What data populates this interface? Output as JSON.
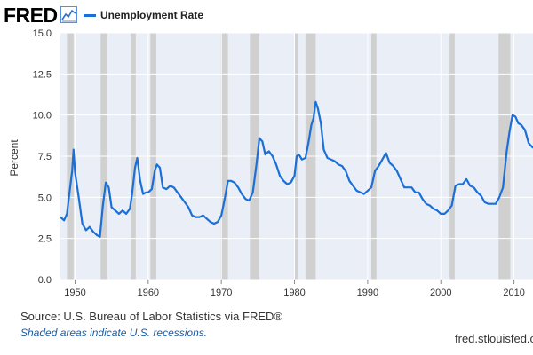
{
  "header": {
    "logo_text": "FRED",
    "logo_icon": "line-chart-icon",
    "legend_label": "Unemployment Rate"
  },
  "colors": {
    "line": "#1a6fd8",
    "recession": "#d0d0d0",
    "plot_background": "#eaeef6",
    "grid": "#ffffff",
    "note": "#1a5ea8"
  },
  "chart_data": {
    "type": "line",
    "title": "",
    "xlabel": "",
    "ylabel": "Percent",
    "xlim": [
      1948,
      2012.6
    ],
    "ylim": [
      0,
      15
    ],
    "y_ticks": [
      "0.0",
      "2.5",
      "5.0",
      "7.5",
      "10.0",
      "12.5",
      "15.0"
    ],
    "x_ticks": [
      "1950",
      "1960",
      "1970",
      "1980",
      "1990",
      "2000",
      "2010"
    ],
    "grid": true,
    "legend_position": "top-left",
    "recessions": [
      [
        1948.9,
        1949.8
      ],
      [
        1953.5,
        1954.4
      ],
      [
        1957.6,
        1958.3
      ],
      [
        1960.3,
        1961.1
      ],
      [
        1969.9,
        1970.9
      ],
      [
        1973.9,
        1975.2
      ],
      [
        1980.0,
        1980.5
      ],
      [
        1981.5,
        1982.9
      ],
      [
        1990.5,
        1991.2
      ],
      [
        2001.2,
        2001.9
      ],
      [
        2007.9,
        2009.5
      ]
    ],
    "series": [
      {
        "name": "Unemployment Rate",
        "x": [
          1948.0,
          1948.5,
          1948.9,
          1949.3,
          1949.6,
          1949.8,
          1950.0,
          1950.5,
          1951.0,
          1951.5,
          1952.0,
          1952.5,
          1953.0,
          1953.4,
          1953.8,
          1954.2,
          1954.6,
          1955.0,
          1955.5,
          1956.0,
          1956.5,
          1957.0,
          1957.5,
          1957.8,
          1958.2,
          1958.5,
          1958.9,
          1959.3,
          1959.7,
          1960.0,
          1960.5,
          1960.9,
          1961.2,
          1961.6,
          1962.0,
          1962.5,
          1963.0,
          1963.5,
          1964.0,
          1964.5,
          1965.0,
          1965.5,
          1966.0,
          1966.5,
          1967.0,
          1967.5,
          1968.0,
          1968.5,
          1969.0,
          1969.5,
          1970.0,
          1970.5,
          1970.9,
          1971.3,
          1971.8,
          1972.3,
          1972.8,
          1973.3,
          1973.8,
          1974.3,
          1974.8,
          1975.2,
          1975.6,
          1976.0,
          1976.5,
          1977.0,
          1977.5,
          1978.0,
          1978.5,
          1979.0,
          1979.5,
          1980.0,
          1980.3,
          1980.6,
          1981.0,
          1981.5,
          1981.9,
          1982.3,
          1982.6,
          1982.9,
          1983.2,
          1983.6,
          1984.0,
          1984.5,
          1985.0,
          1985.5,
          1986.0,
          1986.5,
          1987.0,
          1987.5,
          1988.0,
          1988.5,
          1989.0,
          1989.5,
          1990.0,
          1990.5,
          1991.0,
          1991.5,
          1992.0,
          1992.5,
          1993.0,
          1993.5,
          1994.0,
          1994.5,
          1995.0,
          1995.5,
          1996.0,
          1996.5,
          1997.0,
          1997.5,
          1998.0,
          1998.5,
          1999.0,
          1999.5,
          2000.0,
          2000.5,
          2001.0,
          2001.5,
          2002.0,
          2002.5,
          2003.0,
          2003.5,
          2004.0,
          2004.5,
          2005.0,
          2005.5,
          2006.0,
          2006.5,
          2007.0,
          2007.5,
          2008.0,
          2008.5,
          2009.0,
          2009.4,
          2009.8,
          2010.2,
          2010.6,
          2011.0,
          2011.5,
          2012.0,
          2012.6
        ],
        "values": [
          3.8,
          3.6,
          4.0,
          5.5,
          6.6,
          7.9,
          6.5,
          5.0,
          3.4,
          3.0,
          3.2,
          2.9,
          2.7,
          2.6,
          4.5,
          5.9,
          5.6,
          4.4,
          4.2,
          4.0,
          4.2,
          4.0,
          4.3,
          5.2,
          6.8,
          7.4,
          6.0,
          5.2,
          5.3,
          5.3,
          5.5,
          6.6,
          7.0,
          6.8,
          5.6,
          5.5,
          5.7,
          5.6,
          5.3,
          5.0,
          4.7,
          4.4,
          3.9,
          3.8,
          3.8,
          3.9,
          3.7,
          3.5,
          3.4,
          3.5,
          3.9,
          5.0,
          6.0,
          6.0,
          5.9,
          5.6,
          5.2,
          4.9,
          4.8,
          5.3,
          7.0,
          8.6,
          8.4,
          7.6,
          7.8,
          7.5,
          7.0,
          6.3,
          6.0,
          5.8,
          5.9,
          6.3,
          7.5,
          7.6,
          7.3,
          7.4,
          8.3,
          9.4,
          9.8,
          10.8,
          10.4,
          9.5,
          7.9,
          7.4,
          7.3,
          7.2,
          7.0,
          6.9,
          6.6,
          6.0,
          5.7,
          5.4,
          5.3,
          5.2,
          5.4,
          5.6,
          6.6,
          6.9,
          7.3,
          7.7,
          7.1,
          6.9,
          6.6,
          6.1,
          5.6,
          5.6,
          5.6,
          5.3,
          5.3,
          4.9,
          4.6,
          4.5,
          4.3,
          4.2,
          4.0,
          4.0,
          4.2,
          4.5,
          5.7,
          5.8,
          5.8,
          6.1,
          5.7,
          5.6,
          5.3,
          5.1,
          4.7,
          4.6,
          4.6,
          4.6,
          5.0,
          5.6,
          7.8,
          9.0,
          10.0,
          9.9,
          9.5,
          9.4,
          9.1,
          8.3,
          8.0
        ]
      }
    ]
  },
  "footer": {
    "source": "Source: U.S. Bureau of Labor Statistics via FRED®",
    "note": "Shaded areas indicate U.S. recessions.",
    "url": "fred.stlouisfed.org"
  }
}
